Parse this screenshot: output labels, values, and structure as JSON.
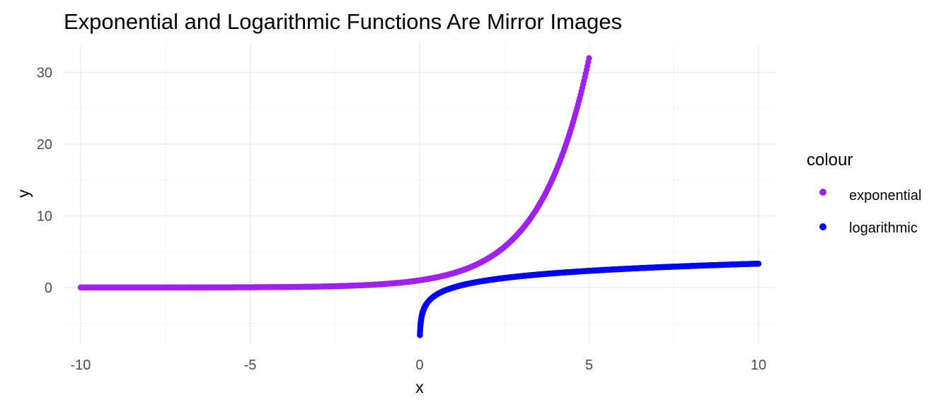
{
  "chart_data": {
    "type": "scatter",
    "title": "Exponential and Logarithmic Functions Are Mirror Images",
    "xlabel": "x",
    "ylabel": "y",
    "xlim": [
      -10.5,
      10.5
    ],
    "ylim": [
      -8,
      34
    ],
    "x_ticks": [
      -10,
      -5,
      0,
      5,
      10
    ],
    "x_tick_labels": [
      "-10",
      "-5",
      "0",
      "5",
      "10"
    ],
    "y_ticks": [
      0,
      10,
      20,
      30
    ],
    "y_tick_labels": [
      "0",
      "10",
      "20",
      "30"
    ],
    "x_minor": [
      -7.5,
      -2.5,
      2.5,
      7.5
    ],
    "y_minor": [
      -5,
      5,
      15,
      25
    ],
    "grid": true,
    "legend": {
      "title": "colour",
      "position": "right",
      "entries": [
        "exponential",
        "logarithmic"
      ]
    },
    "series": [
      {
        "name": "exponential",
        "color": "#a020f0",
        "function": "2^x",
        "x_range": [
          -10,
          5
        ],
        "x": [
          -10,
          -8,
          -6,
          -4,
          -3,
          -2,
          -1,
          0,
          0.5,
          1,
          1.5,
          2,
          2.5,
          3,
          3.5,
          4,
          4.25,
          4.5,
          4.75,
          5
        ],
        "y": [
          0.001,
          0.004,
          0.016,
          0.063,
          0.125,
          0.25,
          0.5,
          1,
          1.41,
          2,
          2.83,
          4,
          5.66,
          8,
          11.31,
          16,
          19.03,
          22.63,
          26.91,
          32
        ]
      },
      {
        "name": "logarithmic",
        "color": "#0000ff",
        "function": "log2(x)",
        "x_range": [
          0.01,
          10
        ],
        "x": [
          0.01,
          0.02,
          0.05,
          0.1,
          0.2,
          0.3,
          0.5,
          0.75,
          1,
          1.5,
          2,
          3,
          4,
          5,
          6,
          7,
          8,
          9,
          10
        ],
        "y": [
          -6.64,
          -5.64,
          -4.32,
          -3.32,
          -2.32,
          -1.74,
          -1,
          -0.42,
          0,
          0.58,
          1,
          1.58,
          2,
          2.32,
          2.58,
          2.81,
          3,
          3.17,
          3.32
        ]
      }
    ]
  }
}
